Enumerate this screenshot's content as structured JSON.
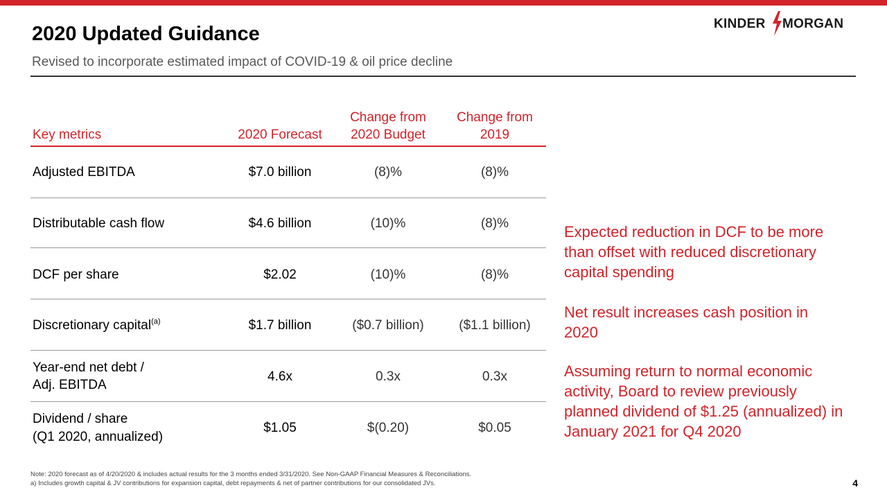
{
  "header": {
    "title": "2020 Updated Guidance",
    "subtitle": "Revised to incorporate estimated impact of COVID-19 & oil price decline",
    "logo_left": "KINDER",
    "logo_right": "MORGAN",
    "accent_color": "#d2232a"
  },
  "table": {
    "columns": {
      "metric": "Key metrics",
      "forecast": "2020 Forecast",
      "chg_budget_1": "Change from",
      "chg_budget_2": "2020 Budget",
      "chg_2019_1": "Change from",
      "chg_2019_2": "2019"
    },
    "rows": [
      {
        "metric": "Adjusted EBITDA",
        "forecast": "$7.0 billion",
        "chg_budget": "(8)%",
        "chg_2019": "(8)%"
      },
      {
        "metric": "Distributable cash flow",
        "forecast": "$4.6 billion",
        "chg_budget": "(10)%",
        "chg_2019": "(8)%"
      },
      {
        "metric": "DCF per share",
        "forecast": "$2.02",
        "chg_budget": "(10)%",
        "chg_2019": "(8)%"
      },
      {
        "metric": "Discretionary capital",
        "metric_sup": "(a)",
        "forecast": "$1.7 billion",
        "chg_budget": "($0.7 billion)",
        "chg_2019": "($1.1 billion)"
      },
      {
        "metric_1": "Year-end net debt /",
        "metric_2": "Adj. EBITDA",
        "forecast": "4.6x",
        "chg_budget": "0.3x",
        "chg_2019": "0.3x"
      },
      {
        "metric_1": "Dividend / share",
        "metric_2": "(Q1 2020, annualized)",
        "forecast": "$1.05",
        "chg_budget": "$(0.20)",
        "chg_2019": "$0.05"
      }
    ]
  },
  "notes": [
    "Expected reduction in DCF to be more than offset with reduced discretionary capital spending",
    "Net result increases cash position in 2020",
    "Assuming return to normal economic activity, Board to review previously planned dividend of $1.25 (annualized) in January 2021 for Q4 2020"
  ],
  "footnotes": {
    "note": "Note: 2020 forecast as of 4/20/2020 & includes actual results for the 3 months ended 3/31/2020. See Non-GAAP Financial Measures & Reconciliations.",
    "a": "a)   Includes growth capital & JV contributions for expansion capital, debt repayments & net of partner contributions for our consolidated JVs."
  },
  "page_number": "4"
}
